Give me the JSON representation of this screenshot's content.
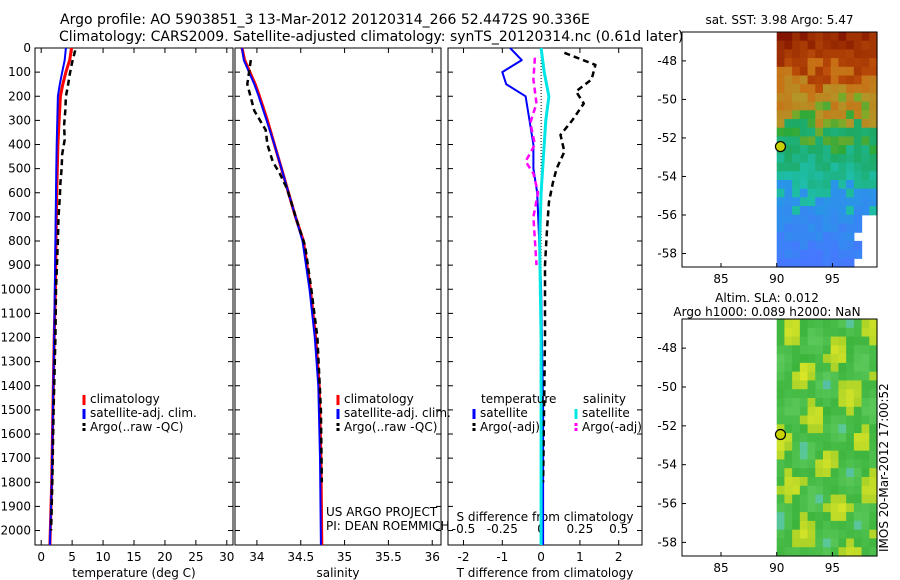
{
  "header": {
    "line1": "Argo profile: AO 5903851_3 13-Mar-2012 20120314_266 52.4472S 90.336E",
    "line2": "Climatology: CARS2009. Satellite-adjusted climatology: synTS_20120314.nc (0.61d later)"
  },
  "credit": {
    "line1": "US ARGO PROJECT",
    "line2": "PI: DEAN ROEMMICH",
    "stamp": "IMOS 20-Mar-2012 17:00:52"
  },
  "colors": {
    "climatology": "#ff0000",
    "satellite": "#0000ff",
    "argo": "#000000",
    "salinity_satellite": "#00e5e5",
    "salinity_argo": "#ff00ff"
  },
  "chart_data": [
    {
      "id": "temperature",
      "type": "line",
      "xlabel": "temperature (deg C)",
      "ylabel": "",
      "xlim": [
        -1,
        31
      ],
      "ylim": [
        2060,
        0
      ],
      "xticks": [
        "0",
        "5",
        "10",
        "15",
        "20",
        "25",
        "30"
      ],
      "xtick_values": [
        0,
        5,
        10,
        15,
        20,
        25,
        30
      ],
      "yticks": [
        "0",
        "100",
        "200",
        "300",
        "400",
        "500",
        "600",
        "700",
        "800",
        "900",
        "1000",
        "1100",
        "1200",
        "1300",
        "1400",
        "1500",
        "1600",
        "1700",
        "1800",
        "1900",
        "2000"
      ],
      "ytick_values": [
        0,
        100,
        200,
        300,
        400,
        500,
        600,
        700,
        800,
        900,
        1000,
        1100,
        1200,
        1300,
        1400,
        1500,
        1600,
        1700,
        1800,
        1900,
        2000
      ],
      "legend": [
        "climatology",
        "satellite-adj. clim.",
        "Argo(..raw -QC)"
      ],
      "series": [
        {
          "name": "climatology",
          "x": [
            4.9,
            4.6,
            4.0,
            3.5,
            3.1,
            2.9,
            2.7,
            2.6,
            2.5,
            2.4,
            2.3,
            2.1,
            1.9,
            1.7,
            1.4
          ],
          "y": [
            0,
            50,
            100,
            150,
            200,
            300,
            400,
            500,
            600,
            800,
            1000,
            1200,
            1500,
            1800,
            2060
          ]
        },
        {
          "name": "satellite-adj. clim.",
          "x": [
            4.0,
            3.8,
            3.4,
            3.0,
            2.7,
            2.6,
            2.5,
            2.45,
            2.4,
            2.3,
            2.2,
            2.1,
            1.9,
            1.7,
            1.4
          ],
          "y": [
            0,
            50,
            100,
            150,
            200,
            300,
            400,
            500,
            600,
            800,
            1000,
            1200,
            1500,
            1800,
            2060
          ]
        },
        {
          "name": "Argo(..raw -QC)",
          "x": [
            5.5,
            5.0,
            4.6,
            4.3,
            4.0,
            3.9,
            3.7,
            3.8,
            3.4,
            3.3,
            3.1,
            3.0,
            2.8,
            2.7,
            2.4,
            2.3,
            2.0,
            1.8,
            1.6
          ],
          "y": [
            10,
            60,
            110,
            160,
            200,
            260,
            320,
            380,
            440,
            500,
            560,
            620,
            700,
            800,
            1000,
            1200,
            1500,
            1800,
            2000
          ]
        }
      ]
    },
    {
      "id": "salinity",
      "type": "line",
      "xlabel": "salinity",
      "xlim": [
        33.75,
        36.1
      ],
      "ylim": [
        2060,
        0
      ],
      "xticks": [
        "34",
        "34.5",
        "35",
        "35.5",
        "36"
      ],
      "xtick_values": [
        34,
        34.5,
        35,
        35.5,
        36
      ],
      "legend": [
        "climatology",
        "satellite-adj. clim.",
        "Argo(..raw -QC)"
      ],
      "series": [
        {
          "name": "climatology",
          "x": [
            33.83,
            33.86,
            33.92,
            33.98,
            34.03,
            34.12,
            34.2,
            34.28,
            34.36,
            34.44,
            34.53,
            34.61,
            34.67,
            34.71,
            34.73,
            34.74
          ],
          "y": [
            0,
            50,
            100,
            150,
            200,
            300,
            400,
            500,
            600,
            700,
            800,
            1000,
            1200,
            1400,
            1700,
            2060
          ]
        },
        {
          "name": "satellite-adj. clim.",
          "x": [
            33.83,
            33.85,
            33.91,
            33.97,
            34.02,
            34.11,
            34.2,
            34.28,
            34.36,
            34.44,
            34.52,
            34.6,
            34.66,
            34.7,
            34.72,
            34.73
          ],
          "y": [
            0,
            50,
            100,
            150,
            200,
            300,
            400,
            500,
            600,
            700,
            800,
            1000,
            1200,
            1400,
            1700,
            2060
          ]
        },
        {
          "name": "Argo(..raw -QC)",
          "x": [
            33.93,
            33.89,
            33.97,
            34.1,
            34.12,
            34.18,
            34.26,
            34.34,
            34.4,
            34.46,
            34.55,
            34.62,
            34.69,
            34.73,
            34.74
          ],
          "y": [
            50,
            150,
            260,
            340,
            400,
            470,
            520,
            580,
            650,
            720,
            820,
            1000,
            1200,
            1500,
            1800
          ]
        }
      ]
    },
    {
      "id": "difference",
      "type": "line",
      "xlabel": "T difference from climatology",
      "top_label": "S difference from climatology",
      "xlim": [
        -2.4,
        2.6
      ],
      "ylim": [
        2060,
        0
      ],
      "xticks": [
        "-2",
        "-1",
        "0",
        "1",
        "2"
      ],
      "xtick_values": [
        -2,
        -1,
        0,
        1,
        2
      ],
      "s_ticks": [
        "-0.5",
        "-0.25",
        "0",
        "0.25",
        "0.5"
      ],
      "s_tick_values": [
        -0.5,
        -0.25,
        0,
        0.25,
        0.5
      ],
      "legend_titles": [
        "temperature",
        "salinity"
      ],
      "legend": [
        "satellite",
        "Argo(-adj)",
        "satellite",
        "Argo(-adj)"
      ],
      "series": [
        {
          "name": "temperature satellite",
          "x": [
            -0.8,
            -0.5,
            -1.0,
            -0.9,
            -0.4,
            -0.3,
            -0.2,
            -0.2,
            -0.1,
            -0.05,
            0.0,
            0.05,
            0.05
          ],
          "y": [
            0,
            50,
            100,
            150,
            200,
            300,
            400,
            500,
            600,
            800,
            1000,
            1500,
            2060
          ]
        },
        {
          "name": "temperature Argo(-adj)",
          "x": [
            0.6,
            1.4,
            1.3,
            0.9,
            1.1,
            0.8,
            0.5,
            0.6,
            0.4,
            0.3,
            0.2,
            0.15,
            0.1,
            0.1,
            0.05
          ],
          "y": [
            20,
            70,
            130,
            180,
            230,
            300,
            360,
            430,
            500,
            560,
            640,
            760,
            900,
            1200,
            1800
          ]
        },
        {
          "name": "salinity satellite",
          "x": [
            0.0,
            0.02,
            0.05,
            0.03,
            0.02,
            0.0,
            -0.01,
            0.0,
            0.0
          ],
          "y": [
            0,
            100,
            200,
            300,
            400,
            600,
            800,
            1200,
            2060
          ]
        },
        {
          "name": "salinity Argo(-adj)",
          "x": [
            -0.04,
            -0.05,
            -0.03,
            -0.07,
            -0.04,
            -0.1,
            -0.05,
            -0.02,
            -0.05,
            -0.03
          ],
          "y": [
            40,
            130,
            230,
            310,
            400,
            470,
            520,
            600,
            700,
            900
          ]
        }
      ]
    },
    {
      "id": "sst-map",
      "type": "heatmap",
      "title": "sat. SST: 3.98 Argo: 5.47",
      "xticks": [
        "85",
        "90",
        "95"
      ],
      "xtick_values": [
        85,
        90,
        95
      ],
      "yticks": [
        "-48",
        "-50",
        "-52",
        "-54",
        "-56",
        "-58"
      ],
      "ytick_values": [
        -48,
        -50,
        -52,
        -54,
        -56,
        -58
      ],
      "xlim": [
        81.5,
        99
      ],
      "ylim": [
        -58.7,
        -46.5
      ],
      "data_lon_range": [
        90,
        99
      ],
      "argo_position": {
        "lon": 90.336,
        "lat": -52.4472
      },
      "sat_sst": 3.98,
      "argo_sst": 5.47
    },
    {
      "id": "sla-map",
      "type": "heatmap",
      "title_line1": "Altim. SLA: 0.012",
      "title_line2": "Argo h1000: 0.089 h2000: NaN",
      "xticks": [
        "85",
        "90",
        "95"
      ],
      "xtick_values": [
        85,
        90,
        95
      ],
      "yticks": [
        "-48",
        "-50",
        "-52",
        "-54",
        "-56",
        "-58"
      ],
      "ytick_values": [
        -48,
        -50,
        -52,
        -54,
        -56,
        -58
      ],
      "xlim": [
        81.5,
        99
      ],
      "ylim": [
        -58.7,
        -46.5
      ],
      "data_lon_range": [
        90,
        99
      ],
      "argo_position": {
        "lon": 90.336,
        "lat": -52.4472
      },
      "altim_sla": 0.012,
      "argo_h1000": 0.089,
      "argo_h2000": "NaN"
    }
  ]
}
